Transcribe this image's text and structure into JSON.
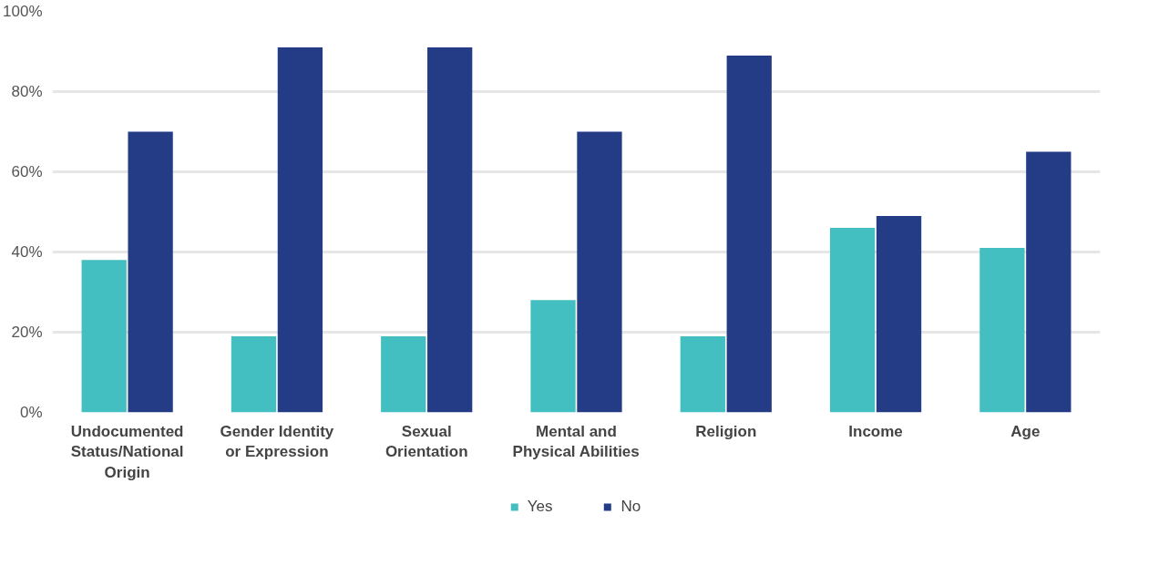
{
  "chart_data": {
    "type": "bar",
    "categories": [
      "Undocumented Status/National Origin",
      "Gender Identity or Expression",
      "Sexual Orientation",
      "Mental and Physical Abilities",
      "Religion",
      "Income",
      "Age"
    ],
    "series": [
      {
        "name": "Yes",
        "color": "#43bfc1",
        "values": [
          38,
          19,
          19,
          28,
          19,
          46,
          41
        ]
      },
      {
        "name": "No",
        "color": "#243c86",
        "values": [
          70,
          91,
          91,
          70,
          89,
          49,
          65
        ]
      }
    ],
    "ylim": [
      0,
      100
    ],
    "yticks": [
      {
        "value": 0,
        "label": "0%"
      },
      {
        "value": 20,
        "label": "20%"
      },
      {
        "value": 40,
        "label": "40%"
      },
      {
        "value": 60,
        "label": "60%"
      },
      {
        "value": 80,
        "label": "80%"
      },
      {
        "value": 100,
        "label": "100%"
      }
    ],
    "grid": "y",
    "legend": "bottom"
  }
}
